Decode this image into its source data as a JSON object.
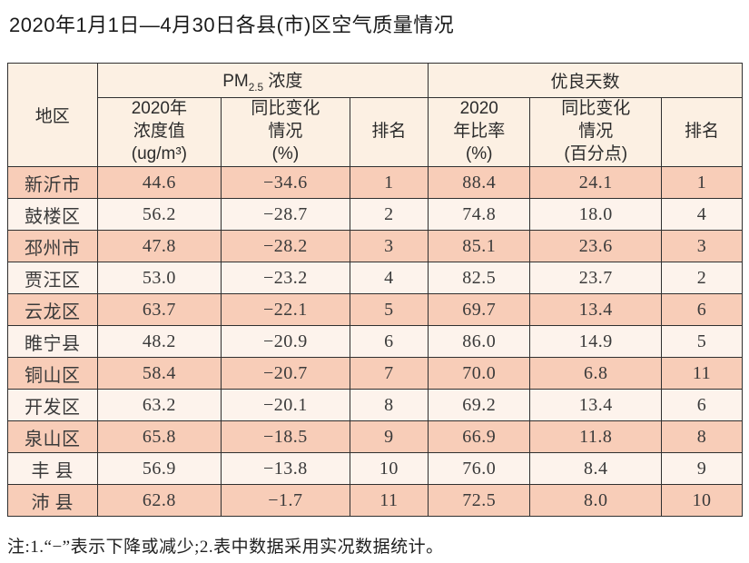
{
  "page": {
    "title": "2020年1月1日—4月30日各县(市)区空气质量情况",
    "note": "注:1.“−”表示下降或减少;2.表中数据采用实况数据统计。"
  },
  "colors": {
    "row_pink": "#f8cdb8",
    "row_light": "#fdf3ec",
    "header_bg": "#fcf0e3",
    "border": "#303030",
    "text": "#3a3a3a"
  },
  "table": {
    "header": {
      "region": "地区",
      "pm25_prefix": "PM",
      "pm25_sub": "2.5",
      "pm25_suffix": " 浓度",
      "good_days": "优良天数",
      "col_pm_value": "2020年\n浓度值\n(ug/m³)",
      "col_pm_change": "同比变化\n情况\n(%)",
      "col_pm_rank": "排名",
      "col_good_ratio": "2020\n年比率\n(%)",
      "col_good_change": "同比变化\n情况\n(百分点)",
      "col_good_rank": "排名"
    },
    "rows": [
      {
        "region": "新沂市",
        "pm_value": "44.6",
        "pm_change": "−34.6",
        "pm_rank": "1",
        "good_ratio": "88.4",
        "good_change": "24.1",
        "good_rank": "1"
      },
      {
        "region": "鼓楼区",
        "pm_value": "56.2",
        "pm_change": "−28.7",
        "pm_rank": "2",
        "good_ratio": "74.8",
        "good_change": "18.0",
        "good_rank": "4"
      },
      {
        "region": "邳州市",
        "pm_value": "47.8",
        "pm_change": "−28.2",
        "pm_rank": "3",
        "good_ratio": "85.1",
        "good_change": "23.6",
        "good_rank": "3"
      },
      {
        "region": "贾汪区",
        "pm_value": "53.0",
        "pm_change": "−23.2",
        "pm_rank": "4",
        "good_ratio": "82.5",
        "good_change": "23.7",
        "good_rank": "2"
      },
      {
        "region": "云龙区",
        "pm_value": "63.7",
        "pm_change": "−22.1",
        "pm_rank": "5",
        "good_ratio": "69.7",
        "good_change": "13.4",
        "good_rank": "6"
      },
      {
        "region": "睢宁县",
        "pm_value": "48.2",
        "pm_change": "−20.9",
        "pm_rank": "6",
        "good_ratio": "86.0",
        "good_change": "14.9",
        "good_rank": "5"
      },
      {
        "region": "铜山区",
        "pm_value": "58.4",
        "pm_change": "−20.7",
        "pm_rank": "7",
        "good_ratio": "70.0",
        "good_change": "6.8",
        "good_rank": "11"
      },
      {
        "region": "开发区",
        "pm_value": "63.2",
        "pm_change": "−20.1",
        "pm_rank": "8",
        "good_ratio": "69.2",
        "good_change": "13.4",
        "good_rank": "6"
      },
      {
        "region": "泉山区",
        "pm_value": "65.8",
        "pm_change": "−18.5",
        "pm_rank": "9",
        "good_ratio": "66.9",
        "good_change": "11.8",
        "good_rank": "8"
      },
      {
        "region": "丰 县",
        "pm_value": "56.9",
        "pm_change": "−13.8",
        "pm_rank": "10",
        "good_ratio": "76.0",
        "good_change": "8.4",
        "good_rank": "9"
      },
      {
        "region": "沛 县",
        "pm_value": "62.8",
        "pm_change": "−1.7",
        "pm_rank": "11",
        "good_ratio": "72.5",
        "good_change": "8.0",
        "good_rank": "10"
      }
    ]
  }
}
